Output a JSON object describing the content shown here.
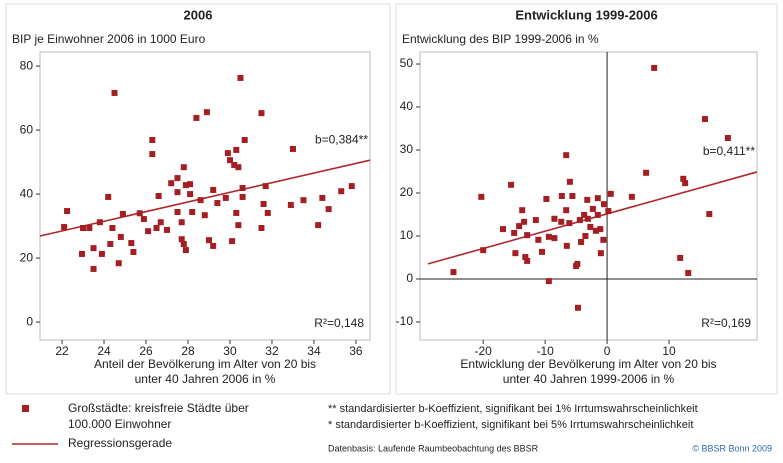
{
  "chart_data": [
    {
      "type": "scatter",
      "title": "2006",
      "subtitle": "BIP je Einwohner 2006 in 1000 Euro",
      "xlabel": [
        "Anteil der Bevölkerung im Alter von 20 bis",
        "unter 40 Jahren 2006 in %"
      ],
      "xlim": [
        20.95,
        36.67
      ],
      "ylim": [
        -5.6,
        84.4
      ],
      "xticks": [
        22,
        24,
        26,
        28,
        30,
        32,
        34,
        36
      ],
      "yticks": [
        0,
        20,
        40,
        60,
        80
      ],
      "zero_lines": false,
      "color": "#a31f24",
      "series": [
        {
          "name": "Großstädte: kreisfreie Städte über 100.000 Einwohner",
          "color": "#a31f24",
          "x": [
            22.24,
            22.1,
            23.0,
            23.3,
            22.95,
            23.5,
            23.5,
            23.8,
            23.9,
            24.2,
            24.3,
            24.5,
            24.4,
            24.7,
            24.8,
            24.9,
            25.3,
            25.4,
            25.7,
            25.9,
            26.1,
            26.3,
            26.3,
            26.5,
            26.7,
            26.6,
            27.0,
            27.2,
            27.5,
            27.5,
            27.7,
            27.8,
            27.7,
            27.5,
            27.8,
            27.9,
            28.1,
            28.1,
            28.2,
            27.9,
            28.4,
            28.6,
            28.8,
            28.9,
            29.0,
            29.2,
            29.2,
            29.4,
            29.8,
            29.9,
            30.0,
            30.1,
            30.2,
            30.3,
            30.3,
            30.4,
            30.4,
            30.5,
            30.6,
            30.7,
            30.6,
            31.5,
            31.6,
            31.7,
            31.5,
            31.8,
            32.9,
            33.0,
            33.5,
            34.2,
            34.4,
            34.7,
            35.3,
            35.8
          ],
          "y": [
            34.7,
            29.7,
            29.4,
            29.4,
            21.3,
            16.6,
            23.1,
            31.2,
            21.3,
            39.1,
            24.4,
            71.6,
            29.4,
            18.4,
            26.6,
            33.8,
            24.7,
            21.9,
            34.0,
            32.2,
            28.4,
            56.9,
            52.5,
            29.4,
            31.2,
            39.4,
            28.8,
            43.4,
            40.6,
            34.4,
            25.9,
            24.4,
            31.2,
            45.0,
            48.4,
            42.8,
            43.1,
            40.0,
            34.4,
            22.5,
            63.8,
            38.1,
            33.4,
            65.6,
            25.6,
            41.3,
            23.8,
            37.2,
            38.8,
            52.8,
            50.6,
            25.3,
            49.1,
            34.1,
            53.8,
            30.3,
            48.4,
            76.3,
            41.9,
            56.9,
            39.1,
            65.3,
            36.9,
            42.5,
            29.4,
            34.1,
            36.6,
            54.1,
            38.1,
            30.3,
            38.8,
            35.3,
            40.9,
            42.5
          ]
        }
      ],
      "regression": {
        "name": "Regressionsgerade",
        "color": "#b0282c",
        "x": [
          20.95,
          36.67
        ],
        "y": [
          26.9,
          50.6
        ]
      },
      "annotations": [
        "b=0,384**",
        "R²=0,148"
      ]
    },
    {
      "type": "scatter",
      "title": "Entwicklung 1999-2006",
      "subtitle": "Entwicklung des BIP 1999-2006 in %",
      "xlabel": [
        "Entwicklung der Bevölkerung im Alter von 20 bis",
        "unter 40 Jahren 1999-2006 in %"
      ],
      "xlim": [
        -30.2,
        24.2
      ],
      "ylim": [
        -14.2,
        52.8
      ],
      "xticks": [
        -20,
        -10,
        0,
        10
      ],
      "yticks": [
        -10,
        0,
        10,
        20,
        30,
        40,
        50
      ],
      "zero_lines": true,
      "color": "#a31f24",
      "series": [
        {
          "name": "Großstädte: kreisfreie Städte über 100.000 Einwohner",
          "color": "#a31f24",
          "x": [
            -24.8,
            -20.3,
            -20,
            -16.8,
            -15.5,
            -15,
            -14.8,
            -14.2,
            -13.7,
            -13.4,
            -13.2,
            -12.9,
            -12.9,
            -11.5,
            -11.1,
            -10.5,
            -9.8,
            -9.4,
            -9.4,
            -8.5,
            -8.5,
            -7.4,
            -7.3,
            -6.6,
            -6.6,
            -6.5,
            -6.1,
            -6,
            -5.6,
            -5,
            -4.8,
            -4.7,
            -4.4,
            -4.2,
            -3.7,
            -3.5,
            -3.2,
            -3.1,
            -2.7,
            -2.3,
            -1.8,
            -1.5,
            -1.5,
            -1.1,
            -0.5,
            -1,
            -0.6,
            0.2,
            0.6,
            4,
            6.3,
            7.6,
            12.3,
            12.6,
            11.8,
            13.1,
            15.8,
            16.5,
            19.5
          ],
          "y": [
            1.6,
            19.1,
            6.7,
            11.6,
            21.9,
            10.7,
            6,
            12.3,
            16,
            13.3,
            5.1,
            4.2,
            10.2,
            13.7,
            9.1,
            6.3,
            18.6,
            -0.5,
            9.8,
            14,
            9.5,
            13.3,
            19.3,
            28.8,
            16,
            7.7,
            13,
            22.6,
            19.3,
            3,
            3.5,
            -6.7,
            13.7,
            8.6,
            14.9,
            10,
            18.4,
            14,
            12.1,
            16.3,
            11.2,
            18.8,
            14.9,
            11.6,
            17.4,
            6,
            9.1,
            15.8,
            19.8,
            19.1,
            24.7,
            49.1,
            23.3,
            22.3,
            4.9,
            1.4,
            37.2,
            15.1,
            32.8
          ]
        }
      ],
      "regression": {
        "name": "Regressionsgerade",
        "color": "#b0282c",
        "x": [
          -28.9,
          24.2
        ],
        "y": [
          3.5,
          24.9
        ]
      },
      "annotations": [
        "b=0,411**",
        "R²=0,169"
      ]
    }
  ],
  "legend": {
    "points": [
      "Großstädte: kreisfreie Städte über",
      "100.000 Einwohner"
    ],
    "line": "Regressionsgerade"
  },
  "notes": [
    "** standardisierter b-Koeffizient, signifikant bei 1% Irrtumswahrscheinlichkeit",
    "*  standardisierter b-Koeffizient, signifikant bei 5% Irrtumswahrscheinlichkeit"
  ],
  "source": "Datenbasis: Laufende Raumbeobachtung  des BBSR",
  "copyright": "© BBSR Bonn 2009"
}
